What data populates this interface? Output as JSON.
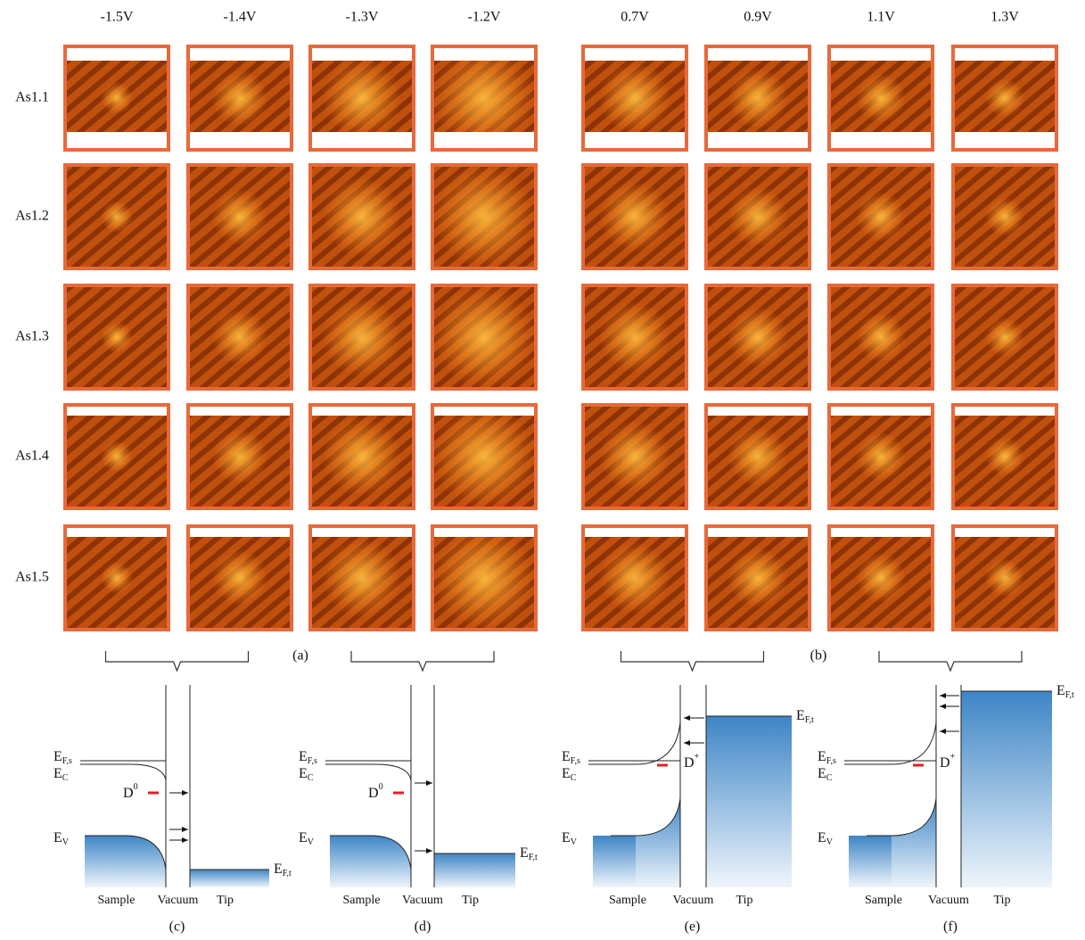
{
  "columns": [
    "-1.5V",
    "-1.4V",
    "-1.3V",
    "-1.2V",
    "0.7V",
    "0.9V",
    "1.1V",
    "1.3V"
  ],
  "rows": [
    "As1.1",
    "As1.2",
    "As1.3",
    "As1.4",
    "As1.5"
  ],
  "panels": [
    "(a)",
    "(b)"
  ],
  "diagrams": [
    {
      "label": "(c)",
      "ef_s": {
        "main": "E",
        "sub": "F,s"
      },
      "ec": {
        "main": "E",
        "sub": "C"
      },
      "ev": {
        "main": "E",
        "sub": "V"
      },
      "defect": {
        "main": "D",
        "sup": "0"
      },
      "ef_t": {
        "main": "E",
        "sub": "F,t"
      },
      "sample": "Sample",
      "vacuum": "Vacuum",
      "tip": "Tip"
    },
    {
      "label": "(d)",
      "ef_s": {
        "main": "E",
        "sub": "F,s"
      },
      "ec": {
        "main": "E",
        "sub": "C"
      },
      "ev": {
        "main": "E",
        "sub": "V"
      },
      "defect": {
        "main": "D",
        "sup": "0"
      },
      "ef_t": {
        "main": "E",
        "sub": "F,t"
      },
      "sample": "Sample",
      "vacuum": "Vacuum",
      "tip": "Tip"
    },
    {
      "label": "(e)",
      "ef_s": {
        "main": "E",
        "sub": "F,s"
      },
      "ec": {
        "main": "E",
        "sub": "C"
      },
      "ev": {
        "main": "E",
        "sub": "V"
      },
      "defect": {
        "main": "D",
        "sup": "+"
      },
      "ef_t": {
        "main": "E",
        "sub": "F,t"
      },
      "sample": "Sample",
      "vacuum": "Vacuum",
      "tip": "Tip"
    },
    {
      "label": "(f)",
      "ef_s": {
        "main": "E",
        "sub": "F,s"
      },
      "ec": {
        "main": "E",
        "sub": "C"
      },
      "ev": {
        "main": "E",
        "sub": "V"
      },
      "defect": {
        "main": "D",
        "sup": "+"
      },
      "ef_t": {
        "main": "E",
        "sub": "F,t"
      },
      "sample": "Sample",
      "vacuum": "Vacuum",
      "tip": "Tip"
    }
  ]
}
